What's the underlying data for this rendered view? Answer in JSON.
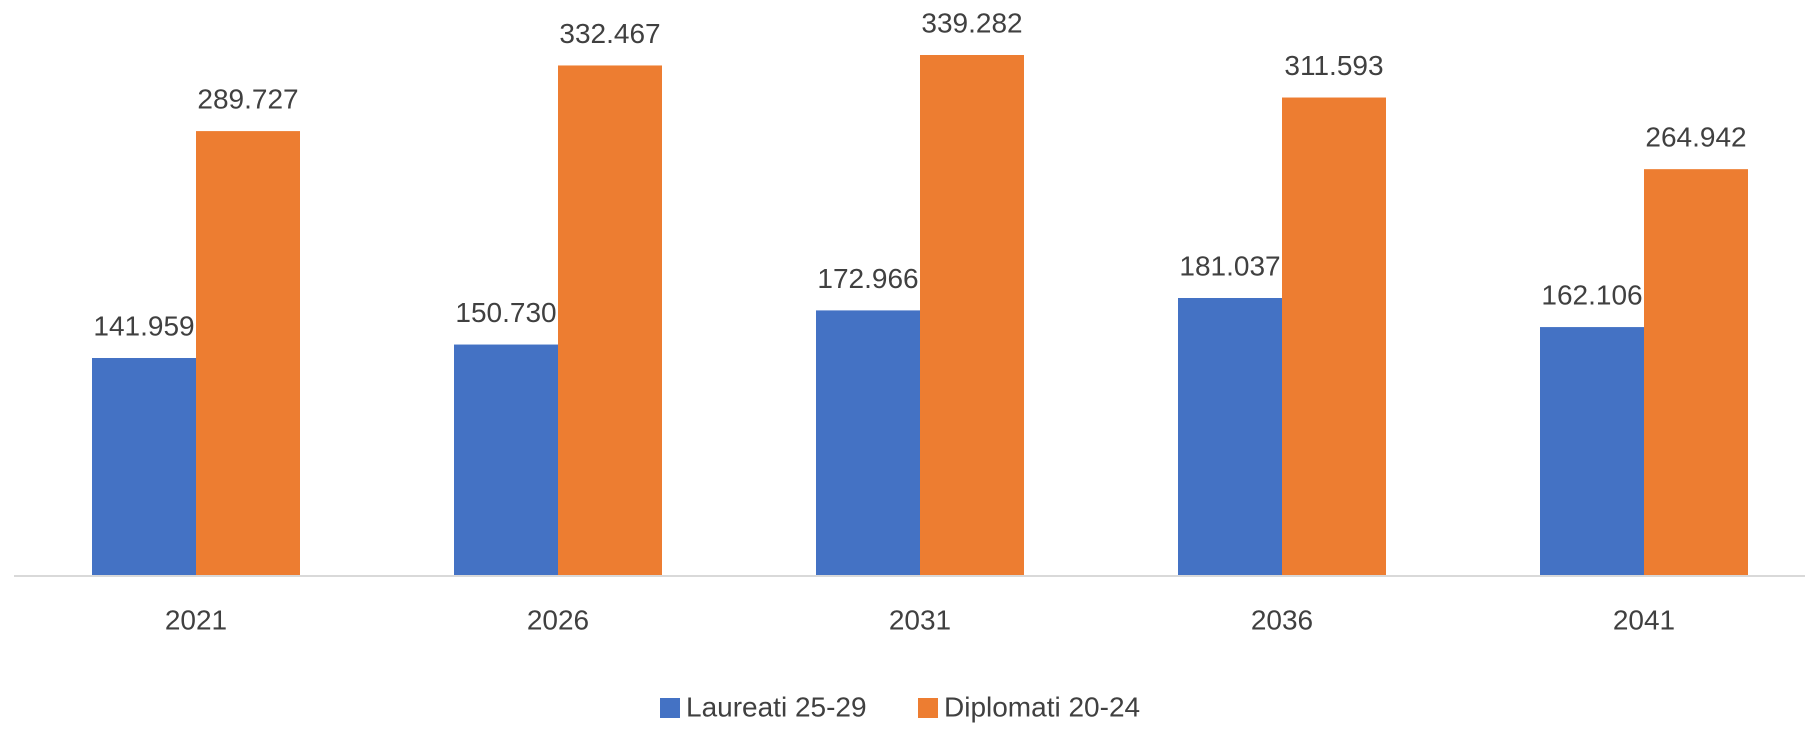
{
  "chart_data": {
    "type": "bar",
    "categories": [
      "2021",
      "2026",
      "2031",
      "2036",
      "2041"
    ],
    "series": [
      {
        "name": "Laureati 25-29",
        "color": "#4472c4",
        "values": [
          141959,
          150730,
          172966,
          181037,
          162106
        ],
        "value_labels": [
          "141.959",
          "150.730",
          "172.966",
          "181.037",
          "162.106"
        ]
      },
      {
        "name": "Diplomati 20-24",
        "color": "#ed7d31",
        "values": [
          289727,
          332467,
          339282,
          311593,
          264942
        ],
        "value_labels": [
          "289.727",
          "332.467",
          "339.282",
          "311.593",
          "264.942"
        ]
      }
    ],
    "legend": "bottom"
  }
}
